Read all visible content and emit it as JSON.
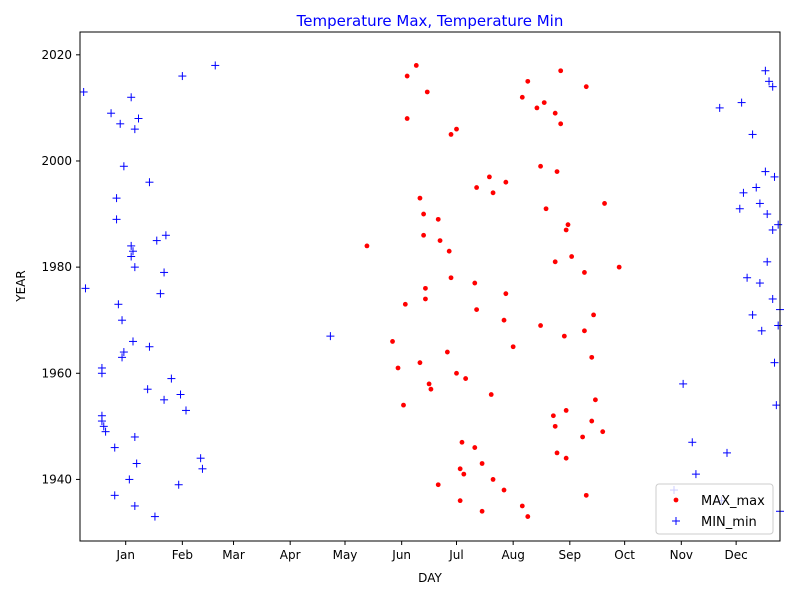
{
  "chart_data": {
    "type": "scatter",
    "title": "Temperature Max, Temperature Min",
    "title_color": "#0000ff",
    "xlabel": "DAY",
    "ylabel": "YEAR",
    "xlim": [
      -10,
      373
    ],
    "ylim": [
      1928.4,
      2024.3
    ],
    "x_ticks": [
      {
        "label": "Jan",
        "value": 15
      },
      {
        "label": "Feb",
        "value": 46
      },
      {
        "label": "Mar",
        "value": 74
      },
      {
        "label": "Apr",
        "value": 105
      },
      {
        "label": "May",
        "value": 135
      },
      {
        "label": "Jun",
        "value": 166
      },
      {
        "label": "Jul",
        "value": 196
      },
      {
        "label": "Aug",
        "value": 227
      },
      {
        "label": "Sep",
        "value": 258
      },
      {
        "label": "Oct",
        "value": 288
      },
      {
        "label": "Nov",
        "value": 319
      },
      {
        "label": "Dec",
        "value": 349
      }
    ],
    "y_ticks": [
      1940,
      1960,
      1980,
      2000,
      2020
    ],
    "legend_position": "lower right",
    "series": [
      {
        "name": "MAX_max",
        "color": "#ff0000",
        "marker": "dot",
        "points": [
          [
            174,
            2018
          ],
          [
            169,
            2016
          ],
          [
            180,
            2013
          ],
          [
            232,
            2012
          ],
          [
            169,
            2008
          ],
          [
            196,
            2006
          ],
          [
            193,
            2005
          ],
          [
            235,
            2015
          ],
          [
            253,
            2017
          ],
          [
            267,
            2014
          ],
          [
            240,
            2010
          ],
          [
            244,
            2011
          ],
          [
            250,
            2009
          ],
          [
            253,
            2007
          ],
          [
            242,
            1999
          ],
          [
            214,
            1997
          ],
          [
            223,
            1996
          ],
          [
            207,
            1995
          ],
          [
            216,
            1994
          ],
          [
            251,
            1998
          ],
          [
            176,
            1993
          ],
          [
            178,
            1990
          ],
          [
            186,
            1989
          ],
          [
            178,
            1986
          ],
          [
            187,
            1985
          ],
          [
            192,
            1983
          ],
          [
            147,
            1984
          ],
          [
            277,
            1992
          ],
          [
            245,
            1991
          ],
          [
            256,
            1987
          ],
          [
            257,
            1988
          ],
          [
            259,
            1982
          ],
          [
            250,
            1981
          ],
          [
            266,
            1979
          ],
          [
            285,
            1980
          ],
          [
            193,
            1978
          ],
          [
            206,
            1977
          ],
          [
            179,
            1976
          ],
          [
            223,
            1975
          ],
          [
            179,
            1974
          ],
          [
            168,
            1973
          ],
          [
            207,
            1972
          ],
          [
            271,
            1971
          ],
          [
            222,
            1970
          ],
          [
            242,
            1969
          ],
          [
            255,
            1967
          ],
          [
            266,
            1968
          ],
          [
            161,
            1966
          ],
          [
            227,
            1965
          ],
          [
            191,
            1964
          ],
          [
            270,
            1963
          ],
          [
            176,
            1962
          ],
          [
            164,
            1961
          ],
          [
            196,
            1960
          ],
          [
            201,
            1959
          ],
          [
            181,
            1958
          ],
          [
            182,
            1957
          ],
          [
            272,
            1955
          ],
          [
            215,
            1956
          ],
          [
            256,
            1953
          ],
          [
            167,
            1954
          ],
          [
            249,
            1952
          ],
          [
            270,
            1951
          ],
          [
            250,
            1950
          ],
          [
            276,
            1949
          ],
          [
            265,
            1948
          ],
          [
            199,
            1947
          ],
          [
            206,
            1946
          ],
          [
            251,
            1945
          ],
          [
            256,
            1944
          ],
          [
            210,
            1943
          ],
          [
            198,
            1942
          ],
          [
            216,
            1940
          ],
          [
            200,
            1941
          ],
          [
            186,
            1939
          ],
          [
            222,
            1938
          ],
          [
            267,
            1937
          ],
          [
            198,
            1936
          ],
          [
            232,
            1935
          ],
          [
            210,
            1934
          ],
          [
            235,
            1933
          ]
        ]
      },
      {
        "name": "MIN_min",
        "color": "#0000ff",
        "marker": "plus",
        "points": [
          [
            64,
            2018
          ],
          [
            46,
            2016
          ],
          [
            -8,
            2013
          ],
          [
            18,
            2012
          ],
          [
            7,
            2009
          ],
          [
            22,
            2008
          ],
          [
            12,
            2007
          ],
          [
            20,
            2006
          ],
          [
            14,
            1999
          ],
          [
            28,
            1996
          ],
          [
            10,
            1993
          ],
          [
            10,
            1989
          ],
          [
            18,
            1984
          ],
          [
            19,
            1983
          ],
          [
            37,
            1986
          ],
          [
            32,
            1985
          ],
          [
            18,
            1982
          ],
          [
            20,
            1980
          ],
          [
            36,
            1979
          ],
          [
            -7,
            1976
          ],
          [
            11,
            1973
          ],
          [
            34,
            1975
          ],
          [
            13,
            1970
          ],
          [
            19,
            1966
          ],
          [
            28,
            1965
          ],
          [
            14,
            1964
          ],
          [
            13,
            1963
          ],
          [
            2,
            1961
          ],
          [
            2,
            1960
          ],
          [
            40,
            1959
          ],
          [
            27,
            1957
          ],
          [
            45,
            1956
          ],
          [
            36,
            1955
          ],
          [
            48,
            1953
          ],
          [
            2,
            1952
          ],
          [
            2,
            1951
          ],
          [
            3,
            1950
          ],
          [
            4,
            1949
          ],
          [
            20,
            1948
          ],
          [
            9,
            1946
          ],
          [
            21,
            1943
          ],
          [
            56,
            1944
          ],
          [
            57,
            1942
          ],
          [
            44,
            1939
          ],
          [
            17,
            1940
          ],
          [
            9,
            1937
          ],
          [
            20,
            1935
          ],
          [
            31,
            1933
          ],
          [
            127,
            1967
          ],
          [
            365,
            2017
          ],
          [
            367,
            2015
          ],
          [
            369,
            2014
          ],
          [
            340,
            2010
          ],
          [
            352,
            2011
          ],
          [
            358,
            2005
          ],
          [
            365,
            1998
          ],
          [
            370,
            1997
          ],
          [
            360,
            1995
          ],
          [
            362,
            1992
          ],
          [
            353,
            1994
          ],
          [
            366,
            1990
          ],
          [
            369,
            1987
          ],
          [
            372,
            1988
          ],
          [
            351,
            1991
          ],
          [
            366,
            1981
          ],
          [
            355,
            1978
          ],
          [
            362,
            1977
          ],
          [
            369,
            1974
          ],
          [
            373,
            1972
          ],
          [
            358,
            1971
          ],
          [
            363,
            1968
          ],
          [
            372,
            1969
          ],
          [
            370,
            1962
          ],
          [
            371,
            1954
          ],
          [
            320,
            1958
          ],
          [
            325,
            1947
          ],
          [
            327,
            1941
          ],
          [
            344,
            1945
          ],
          [
            341,
            1936
          ],
          [
            315,
            1938
          ],
          [
            373,
            1934
          ]
        ]
      }
    ]
  }
}
